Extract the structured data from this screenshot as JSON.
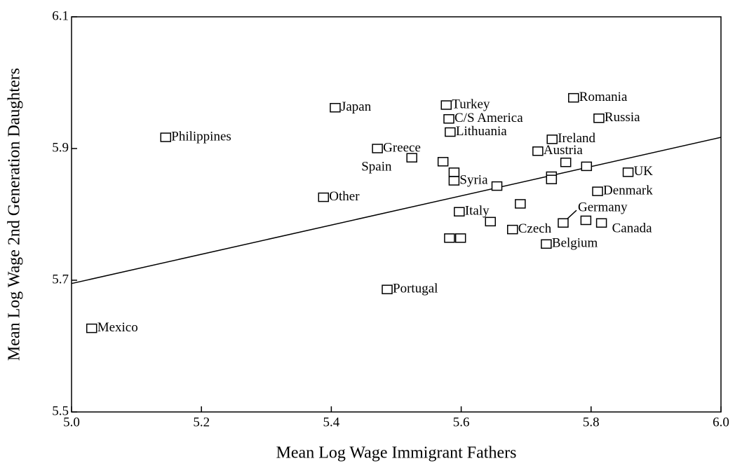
{
  "chart_data": {
    "type": "scatter",
    "xlabel": "Mean Log Wage Immigrant Fathers",
    "ylabel": "Mean Log Wage 2nd Generation Daughters",
    "xlim": [
      5.0,
      6.0
    ],
    "ylim": [
      5.5,
      6.1
    ],
    "xticks": [
      {
        "value": 5.0,
        "label": "5.0"
      },
      5.2,
      5.4,
      5.6,
      5.8,
      {
        "value": 6.0,
        "label": "6.0"
      }
    ],
    "yticks": [
      5.5,
      5.7,
      5.9,
      6.1
    ],
    "color": "#000000",
    "x": [
      5.145,
      5.406,
      5.031,
      5.486,
      5.388,
      5.471,
      5.524,
      5.577,
      5.581,
      5.583,
      5.572,
      5.589,
      5.589,
      5.655,
      5.597,
      5.645,
      5.582,
      5.599,
      5.679,
      5.691,
      5.773,
      5.812,
      5.74,
      5.718,
      5.761,
      5.793,
      5.739,
      5.739,
      5.857,
      5.81,
      5.757,
      5.792,
      5.816,
      5.731
    ],
    "values": [
      5.917,
      5.962,
      5.627,
      5.686,
      5.826,
      5.9,
      5.886,
      5.966,
      5.945,
      5.925,
      5.88,
      5.864,
      5.851,
      5.843,
      5.804,
      5.789,
      5.764,
      5.764,
      5.777,
      5.816,
      5.977,
      5.946,
      5.914,
      5.896,
      5.879,
      5.873,
      5.858,
      5.853,
      5.864,
      5.835,
      5.787,
      5.791,
      5.787,
      5.755
    ],
    "labels": [
      "Philippines",
      "Japan",
      "Mexico",
      "Portugal",
      "Other",
      "Greece",
      "Spain",
      "Turkey",
      "C/S America",
      "Lithuania",
      null,
      null,
      "Syria",
      null,
      "Italy",
      null,
      null,
      null,
      "Czech",
      null,
      "Romania",
      "Russia",
      "Ireland",
      "Austria",
      null,
      null,
      null,
      null,
      "UK",
      "Denmark",
      "Germany",
      null,
      "Canada",
      "Belgium"
    ],
    "fit": {
      "x": [
        5.0,
        6.0
      ],
      "values": [
        5.695,
        5.917
      ]
    }
  }
}
